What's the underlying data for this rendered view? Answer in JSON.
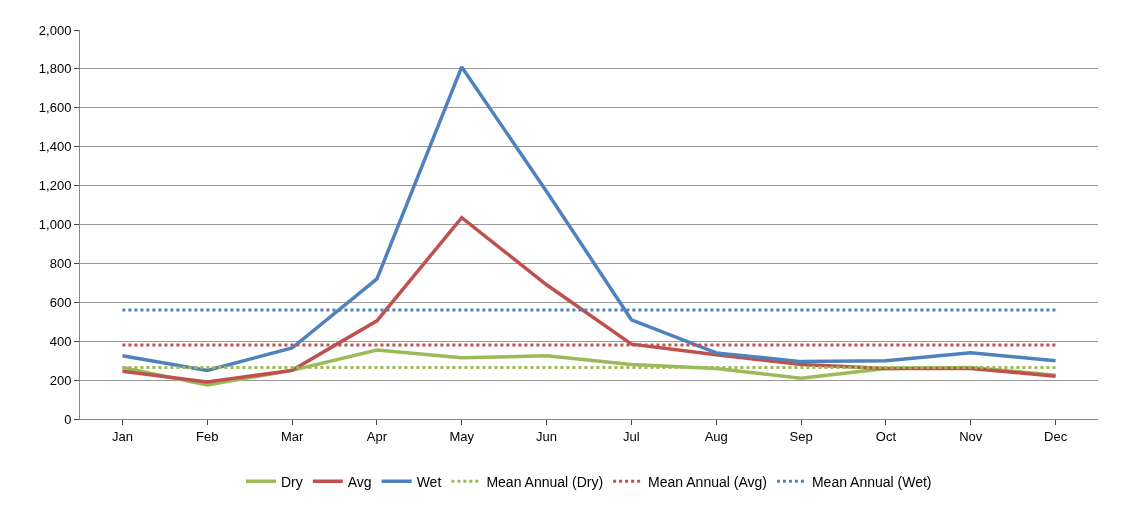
{
  "chart_data": {
    "type": "line",
    "categories": [
      "Jan",
      "Feb",
      "Mar",
      "Apr",
      "May",
      "Jun",
      "Jul",
      "Aug",
      "Sep",
      "Oct",
      "Nov",
      "Dec"
    ],
    "series": [
      {
        "name": "Dry",
        "color": "#9bbb59",
        "line_style": "solid",
        "values": [
          265,
          175,
          250,
          355,
          315,
          325,
          280,
          260,
          210,
          260,
          265,
          225
        ]
      },
      {
        "name": "Avg",
        "color": "#c0504d",
        "line_style": "solid",
        "values": [
          245,
          190,
          250,
          505,
          1035,
          690,
          385,
          330,
          280,
          260,
          260,
          220
        ]
      },
      {
        "name": "Wet",
        "color": "#4f81bd",
        "line_style": "solid",
        "values": [
          325,
          250,
          365,
          720,
          1810,
          1170,
          510,
          340,
          295,
          300,
          340,
          300
        ]
      },
      {
        "name": "Mean Annual (Dry)",
        "color": "#9bbb59",
        "line_style": "dotted",
        "values": [
          265,
          265,
          265,
          265,
          265,
          265,
          265,
          265,
          265,
          265,
          265,
          265
        ]
      },
      {
        "name": "Mean Annual (Avg)",
        "color": "#c0504d",
        "line_style": "dotted",
        "values": [
          380,
          380,
          380,
          380,
          380,
          380,
          380,
          380,
          380,
          380,
          380,
          380
        ]
      },
      {
        "name": "Mean Annual (Wet)",
        "color": "#4f81bd",
        "line_style": "dotted",
        "values": [
          560,
          560,
          560,
          560,
          560,
          560,
          560,
          560,
          560,
          560,
          560,
          560
        ]
      }
    ],
    "ylim": [
      0,
      2000
    ],
    "yticks": [
      0,
      {
        "value": 200,
        "label": "200"
      },
      {
        "value": 400,
        "label": "400"
      },
      {
        "value": 600,
        "label": "600"
      },
      {
        "value": 800,
        "label": "800"
      },
      {
        "value": 1000,
        "label": "1,000"
      },
      {
        "value": 1200,
        "label": "1,200"
      },
      {
        "value": 1400,
        "label": "1,400"
      },
      {
        "value": 1600,
        "label": "1,600"
      },
      {
        "value": 1800,
        "label": "1,800"
      },
      {
        "value": 2000,
        "label": "2,000"
      }
    ],
    "grid": "y",
    "legend": "bottom",
    "marker": "none"
  }
}
